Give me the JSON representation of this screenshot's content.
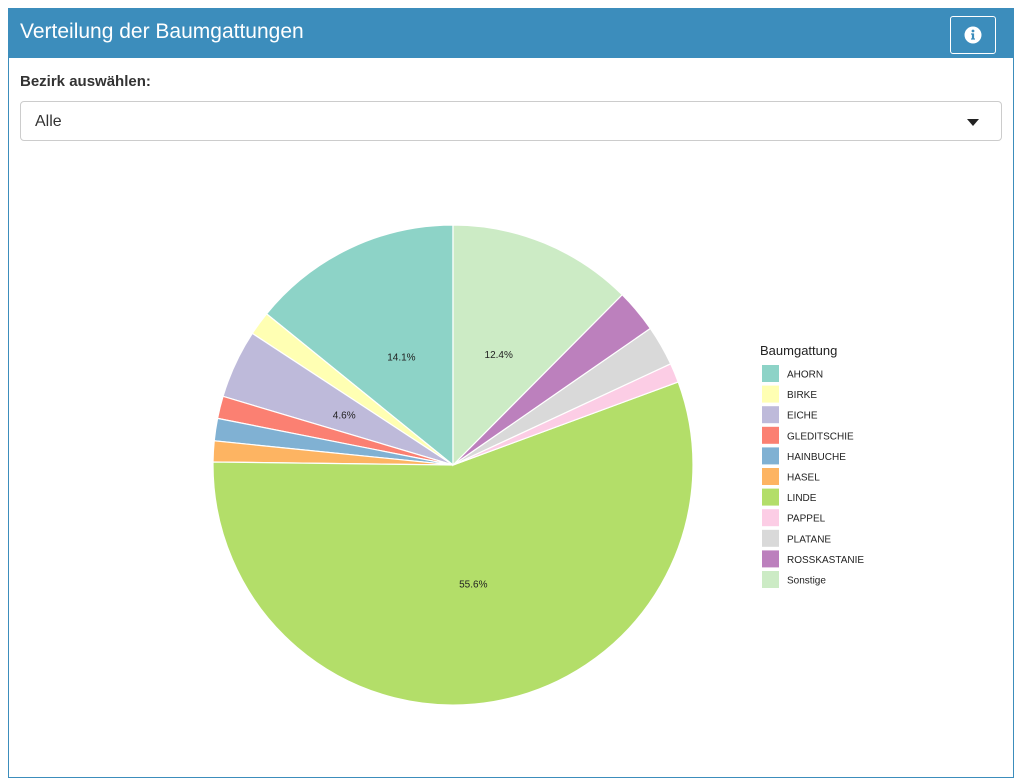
{
  "box": {
    "title": "Verteilung der Baumgattungen",
    "header_color": "#3c8dbc",
    "info_icon": "info-circle-icon"
  },
  "filter": {
    "label": "Bezirk auswählen:",
    "selected": "Alle"
  },
  "chart_data": {
    "type": "pie",
    "legend_title": "Baumgattung",
    "legend_position": "right",
    "slices": [
      {
        "name": "AHORN",
        "value": 14.1,
        "color": "#8dd3c7",
        "label": "14.1%"
      },
      {
        "name": "BIRKE",
        "value": 1.6,
        "color": "#ffffb3",
        "label": ""
      },
      {
        "name": "EICHE",
        "value": 4.6,
        "color": "#bebada",
        "label": "4.6%"
      },
      {
        "name": "GLEDITSCHIE",
        "value": 1.5,
        "color": "#fb8072",
        "label": ""
      },
      {
        "name": "HAINBUCHE",
        "value": 1.5,
        "color": "#80b1d3",
        "label": ""
      },
      {
        "name": "HASEL",
        "value": 1.4,
        "color": "#fdb462",
        "label": ""
      },
      {
        "name": "LINDE",
        "value": 55.6,
        "color": "#b3de69",
        "label": "55.6%"
      },
      {
        "name": "PAPPEL",
        "value": 1.3,
        "color": "#fccde5",
        "label": ""
      },
      {
        "name": "PLATANE",
        "value": 2.7,
        "color": "#d9d9d9",
        "label": ""
      },
      {
        "name": "ROSSKASTANIE",
        "value": 2.9,
        "color": "#bc80bd",
        "label": ""
      },
      {
        "name": "Sonstige",
        "value": 12.4,
        "color": "#ccebc5",
        "label": "12.4%"
      }
    ]
  }
}
